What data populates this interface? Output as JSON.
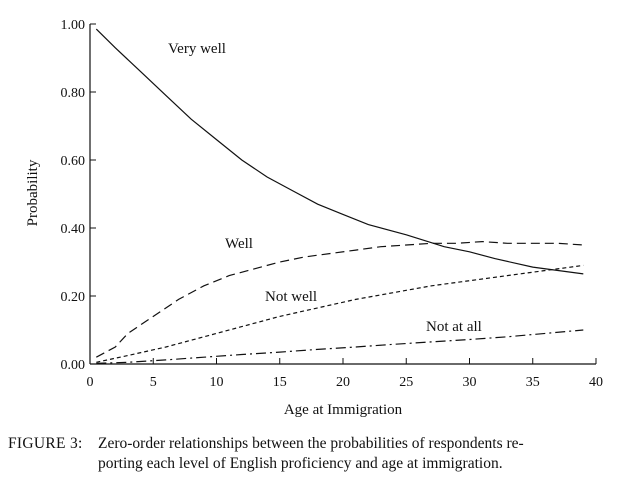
{
  "chart_data": {
    "type": "line",
    "xlabel": "Age at Immigration",
    "ylabel": "Probability",
    "xlim": [
      0,
      40
    ],
    "ylim": [
      0,
      1
    ],
    "x_ticks": [
      "0",
      "5",
      "10",
      "15",
      "20",
      "25",
      "30",
      "35",
      "40"
    ],
    "y_ticks": [
      "0.00",
      "0.20",
      "0.40",
      "0.60",
      "0.80",
      "1.00"
    ],
    "grid": false,
    "legend": "inline labels",
    "series": [
      {
        "name": "Very well",
        "style": "solid",
        "x": [
          0.5,
          2,
          4,
          6,
          8,
          10,
          12,
          14,
          16,
          18,
          20,
          22,
          25,
          28,
          30,
          32,
          35,
          37,
          39
        ],
        "values": [
          0.985,
          0.93,
          0.86,
          0.79,
          0.72,
          0.66,
          0.6,
          0.55,
          0.51,
          0.47,
          0.44,
          0.41,
          0.38,
          0.345,
          0.33,
          0.31,
          0.285,
          0.275,
          0.265
        ]
      },
      {
        "name": "Well",
        "style": "dashed",
        "x": [
          0.5,
          2,
          3,
          5,
          7,
          9,
          11,
          13,
          15,
          17,
          19,
          21,
          23,
          25,
          27,
          29,
          31,
          33,
          35,
          37,
          39
        ],
        "values": [
          0.02,
          0.05,
          0.09,
          0.14,
          0.19,
          0.23,
          0.26,
          0.28,
          0.3,
          0.315,
          0.325,
          0.335,
          0.345,
          0.35,
          0.355,
          0.355,
          0.36,
          0.355,
          0.355,
          0.355,
          0.35
        ]
      },
      {
        "name": "Not well",
        "style": "short-dashed",
        "x": [
          0.5,
          3,
          6,
          9,
          12,
          15,
          18,
          21,
          24,
          27,
          30,
          33,
          36,
          39
        ],
        "values": [
          0.005,
          0.025,
          0.05,
          0.08,
          0.11,
          0.14,
          0.165,
          0.19,
          0.21,
          0.23,
          0.245,
          0.26,
          0.275,
          0.29
        ]
      },
      {
        "name": "Not at all",
        "style": "long-dash-dot",
        "x": [
          0.5,
          3,
          6,
          9,
          12,
          15,
          18,
          21,
          24,
          27,
          30,
          33,
          36,
          39
        ],
        "values": [
          0.002,
          0.005,
          0.012,
          0.02,
          0.028,
          0.035,
          0.043,
          0.05,
          0.058,
          0.065,
          0.072,
          0.08,
          0.09,
          0.1
        ]
      }
    ]
  },
  "caption": {
    "label": "FIGURE 3:",
    "line1": "Zero-order relationships between the probabilities of respondents re-",
    "line2": "porting each level of English proficiency and age at immigration."
  }
}
